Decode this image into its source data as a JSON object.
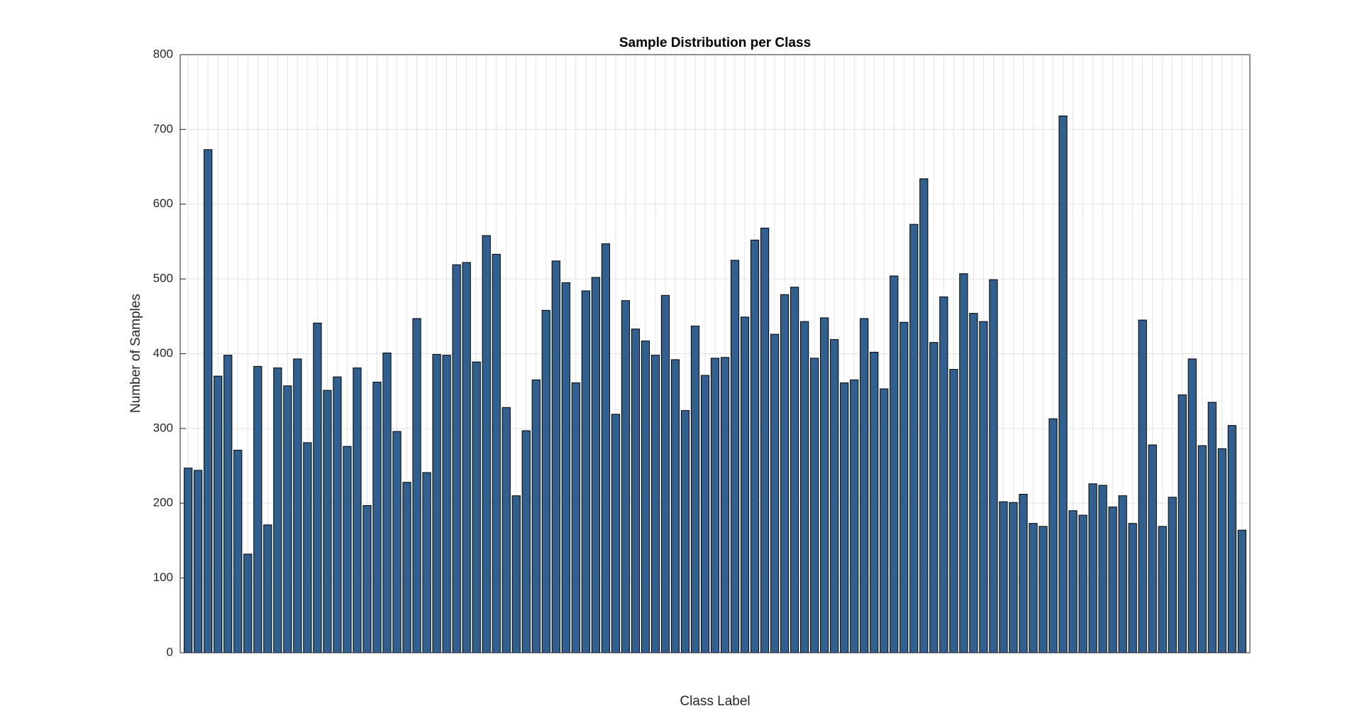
{
  "chart_data": {
    "type": "bar",
    "title": "Sample Distribution per Class",
    "xlabel": "Class Label",
    "ylabel": "Number of Samples",
    "categories": [
      null,
      null,
      null,
      null,
      null,
      null,
      null,
      null,
      null,
      null,
      null,
      null,
      null,
      null,
      null,
      null,
      null,
      null,
      null,
      null,
      null,
      null,
      null,
      null,
      null,
      null,
      null,
      null,
      null,
      null,
      null,
      null,
      null,
      null,
      null,
      null,
      null,
      null,
      null,
      null,
      null,
      null,
      null,
      null,
      null,
      null,
      null,
      null,
      null,
      null,
      null,
      null,
      null,
      null,
      null,
      null,
      null,
      null,
      null,
      null,
      null,
      null,
      null,
      null,
      null,
      null,
      null,
      null,
      null,
      null,
      null,
      null,
      null,
      null,
      null,
      null,
      null,
      null,
      null,
      null,
      null,
      null,
      null,
      null,
      null,
      null,
      null,
      null,
      null,
      null,
      null,
      null,
      null,
      null,
      null,
      null,
      null,
      null,
      null,
      null,
      null,
      null,
      null,
      null,
      null,
      null,
      null
    ],
    "values": [
      247,
      244,
      673,
      370,
      398,
      271,
      132,
      383,
      171,
      381,
      357,
      393,
      281,
      441,
      351,
      369,
      276,
      381,
      197,
      362,
      401,
      296,
      228,
      447,
      241,
      399,
      398,
      519,
      522,
      389,
      558,
      533,
      328,
      210,
      297,
      365,
      458,
      524,
      495,
      361,
      484,
      502,
      547,
      319,
      471,
      433,
      417,
      398,
      478,
      392,
      324,
      437,
      371,
      394,
      395,
      525,
      449,
      552,
      568,
      426,
      479,
      489,
      443,
      394,
      448,
      419,
      361,
      365,
      447,
      402,
      353,
      504,
      442,
      573,
      634,
      415,
      476,
      379,
      507,
      454,
      443,
      499,
      202,
      201,
      212,
      173,
      169,
      313,
      718,
      190,
      184,
      226,
      224,
      195,
      210,
      173,
      445,
      278,
      169,
      208,
      345,
      393,
      277,
      335,
      273,
      304,
      164
    ],
    "color": "#30608f",
    "ylim": [
      0,
      800
    ],
    "yticks": [
      0,
      100,
      200,
      300,
      400,
      500,
      600,
      700,
      800
    ],
    "grid": true
  }
}
